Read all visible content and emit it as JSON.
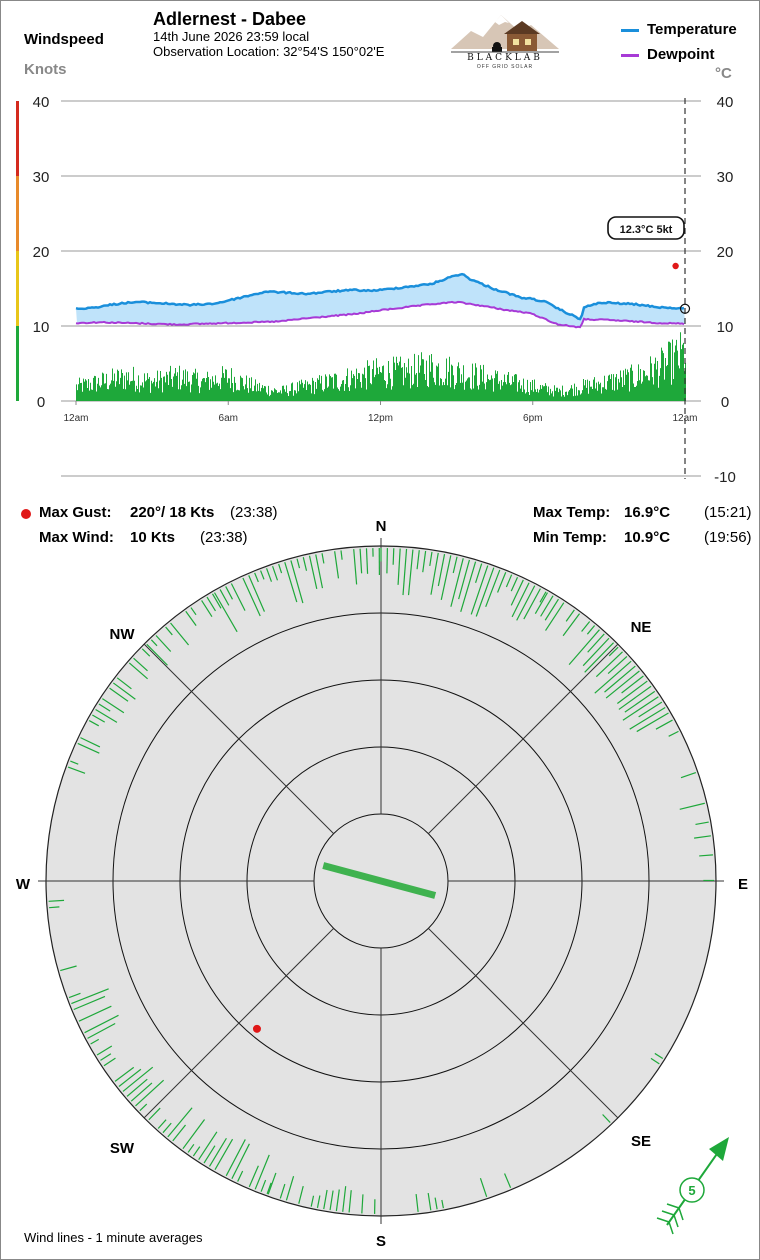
{
  "header": {
    "station_title": "Adlernest - Dabee",
    "date_line": "14th June 2026  23:59 local",
    "location_line": "Observation Location: 32°54'S 150°02'E",
    "logo_text": "BLACKLAB",
    "logo_subtext": "OFF GRID SOLAR"
  },
  "left_axis": {
    "title": "Windspeed",
    "unit": "Knots",
    "ticks": [
      "40",
      "30",
      "20",
      "10",
      "0"
    ],
    "bands": [
      {
        "from": 0,
        "to": 10,
        "color": "#1ea83a"
      },
      {
        "from": 10,
        "to": 20,
        "color": "#e8c619"
      },
      {
        "from": 20,
        "to": 30,
        "color": "#e88a2a"
      },
      {
        "from": 30,
        "to": 40,
        "color": "#d42a1e"
      }
    ]
  },
  "right_axis": {
    "unit": "°C",
    "ticks": [
      "40",
      "30",
      "20",
      "10",
      "0",
      "-10"
    ]
  },
  "legend": {
    "temperature": {
      "label": "Temperature",
      "color": "#1a8fdb"
    },
    "dewpoint": {
      "label": "Dewpoint",
      "color": "#a73ad6"
    }
  },
  "chart_data": {
    "type": "line",
    "x_tick_labels": [
      "12am",
      "6am",
      "12pm",
      "6pm",
      "12am"
    ],
    "x_range_hours": [
      0,
      24
    ],
    "wind_ylim": [
      0,
      40
    ],
    "temp_ylim": [
      -10,
      40
    ],
    "temperature": {
      "name": "Temperature",
      "color": "#1a8fdb",
      "x": [
        0,
        0.5,
        1,
        1.5,
        2,
        2.5,
        3,
        3.5,
        4,
        4.5,
        5,
        5.5,
        6,
        6.5,
        7,
        7.5,
        8,
        8.5,
        9,
        9.5,
        10,
        10.5,
        11,
        11.5,
        12,
        12.5,
        13,
        13.5,
        14,
        14.5,
        15,
        15.25,
        15.5,
        16,
        16.5,
        17,
        17.5,
        18,
        18.5,
        19,
        19.5,
        19.9,
        20,
        20.5,
        21,
        21.5,
        22,
        22.5,
        23,
        23.5,
        24
      ],
      "y": [
        12.3,
        12.4,
        12.6,
        12.9,
        13.1,
        13.2,
        13.1,
        13.0,
        12.9,
        12.8,
        12.9,
        13.0,
        13.4,
        13.8,
        14.2,
        14.6,
        14.5,
        14.4,
        14.3,
        14.4,
        14.6,
        14.7,
        14.8,
        14.7,
        14.8,
        15.0,
        15.2,
        15.4,
        15.6,
        16.2,
        16.8,
        16.9,
        16.3,
        15.6,
        14.9,
        14.4,
        13.8,
        13.6,
        13.2,
        12.3,
        11.5,
        10.9,
        12.4,
        13.0,
        13.1,
        13.0,
        12.9,
        12.7,
        12.5,
        12.4,
        12.3
      ]
    },
    "dewpoint": {
      "name": "Dewpoint",
      "color": "#a73ad6",
      "x": [
        0,
        1,
        2,
        3,
        4,
        5,
        6,
        7,
        8,
        9,
        10,
        11,
        12,
        13,
        14,
        15,
        16,
        17,
        17.5,
        18,
        18.5,
        19,
        19.5,
        19.9,
        20,
        21,
        22,
        23,
        24
      ],
      "y": [
        10.4,
        10.5,
        10.4,
        10.3,
        10.2,
        10.3,
        10.4,
        10.5,
        10.6,
        11.0,
        11.3,
        11.6,
        12.1,
        12.5,
        12.9,
        13.2,
        12.7,
        12.1,
        11.9,
        11.6,
        10.9,
        10.2,
        10.0,
        9.8,
        10.9,
        10.8,
        10.6,
        10.4,
        10.3
      ]
    },
    "wind": {
      "name": "Windspeed",
      "color": "#1ea83a",
      "envelope_x": [
        0,
        1,
        2,
        3,
        4,
        5,
        6,
        7,
        8,
        9,
        10,
        11,
        12,
        13,
        14,
        15,
        16,
        17,
        18,
        19,
        20,
        21,
        22,
        23,
        24
      ],
      "envelope_max": [
        3,
        4,
        5,
        4,
        5,
        4,
        5,
        3,
        2,
        3,
        4,
        5,
        6,
        6,
        7,
        6,
        5,
        4,
        3,
        2,
        3,
        4,
        5,
        7,
        10
      ]
    },
    "current_reading": "12.3°C  5kt",
    "max_gust_marker": {
      "hour": 23.63,
      "knots": 18
    }
  },
  "stats": {
    "max_gust_label": "Max Gust:",
    "max_gust_value": "220°/  18 Kts",
    "max_gust_time": "(23:38)",
    "max_wind_label": "Max Wind:",
    "max_wind_value": "10 Kts",
    "max_wind_time": "(23:38)",
    "max_temp_label": "Max Temp:",
    "max_temp_value": "16.9°C",
    "max_temp_time": "(15:21)",
    "min_temp_label": "Min Temp:",
    "min_temp_value": "10.9°C",
    "min_temp_time": "(19:56)"
  },
  "compass": {
    "labels": {
      "n": "N",
      "ne": "NE",
      "e": "E",
      "se": "SE",
      "s": "S",
      "sw": "SW",
      "w": "W",
      "nw": "NW"
    },
    "ring_count": 5,
    "ring_knots": 5,
    "current_wind_dir_deg": 285,
    "current_wind_len_knots": 5,
    "max_gust_dir_deg": 220,
    "max_gust_knots": 18,
    "line_color": "#1ea83a",
    "sectors": [
      {
        "from": 330,
        "to": 360,
        "density": 0.9
      },
      {
        "from": 0,
        "to": 30,
        "density": 1.0
      },
      {
        "from": 30,
        "to": 60,
        "density": 0.9
      },
      {
        "from": 60,
        "to": 80,
        "density": 0.5
      },
      {
        "from": 80,
        "to": 95,
        "density": 0.2
      },
      {
        "from": 120,
        "to": 140,
        "density": 0.1
      },
      {
        "from": 145,
        "to": 175,
        "density": 0.3
      },
      {
        "from": 180,
        "to": 200,
        "density": 0.4
      },
      {
        "from": 200,
        "to": 250,
        "density": 0.75
      },
      {
        "from": 250,
        "to": 270,
        "density": 0.2
      },
      {
        "from": 290,
        "to": 330,
        "density": 0.5
      }
    ],
    "footer_note": "Wind lines - 1 minute averages",
    "arrow_label": "5"
  }
}
